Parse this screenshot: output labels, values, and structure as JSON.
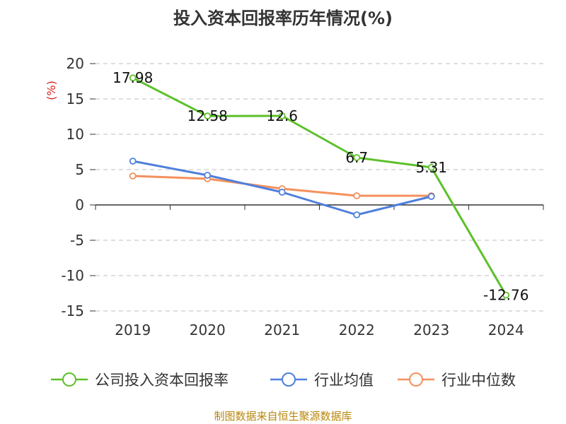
{
  "chart_data": {
    "type": "line",
    "title": "投入资本回报率历年情况(%)",
    "ylabel": "(%)",
    "categories": [
      "2019",
      "2020",
      "2021",
      "2022",
      "2023",
      "2024"
    ],
    "ylim": [
      -15,
      20
    ],
    "yticks": [
      20,
      15,
      10,
      5,
      0,
      -5,
      -10,
      -15
    ],
    "ytick_labels": [
      "20",
      "15",
      "10",
      "5",
      "0",
      "-5",
      "-10",
      "-15"
    ],
    "grid": true,
    "legend_position": "bottom",
    "series": [
      {
        "name": "公司投入资本回报率",
        "color": "#5dc02a",
        "values": [
          17.98,
          12.58,
          12.6,
          6.7,
          5.31,
          -12.76
        ],
        "labels": [
          "17.98",
          "12.58",
          "12.6",
          "6.7",
          "5.31",
          "-12.76"
        ]
      },
      {
        "name": "行业均值",
        "color": "#4f7fdb",
        "values": [
          6.2,
          4.2,
          1.8,
          -1.4,
          1.2,
          null
        ]
      },
      {
        "name": "行业中位数",
        "color": "#f5905d",
        "values": [
          4.1,
          3.7,
          2.3,
          1.3,
          1.3,
          null
        ]
      }
    ],
    "source": "制图数据来自恒生聚源数据库"
  }
}
